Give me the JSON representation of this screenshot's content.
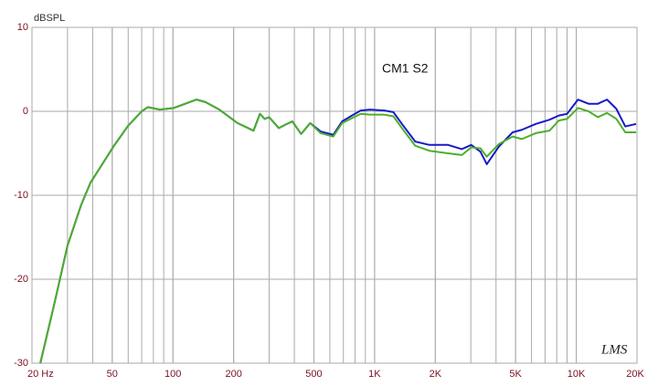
{
  "chart_data": {
    "type": "line",
    "ylabel": "dBSPL",
    "annotation": "CM1 S2",
    "watermark": "LMS",
    "x": [
      22,
      26,
      30,
      35,
      39,
      46,
      51,
      60,
      70,
      75,
      86,
      101,
      131,
      145,
      170,
      209,
      251,
      270,
      285,
      300,
      335,
      360,
      391,
      432,
      479,
      540,
      624,
      690,
      760,
      853,
      950,
      1118,
      1240,
      1366,
      1590,
      1869,
      2313,
      2709,
      3013,
      3347,
      3600,
      4130,
      4835,
      5370,
      6300,
      7370,
      8190,
      9000,
      10200,
      11500,
      12800,
      14200,
      15800,
      17500,
      19800
    ],
    "series": [
      {
        "color": "#1a1ac8",
        "values": [
          -30,
          -22.6,
          -16,
          -11.2,
          -8.5,
          -5.8,
          -4.1,
          -1.7,
          0,
          0.5,
          0.2,
          0.4,
          1.4,
          1.1,
          0.2,
          -1.4,
          -2.3,
          -0.3,
          -0.9,
          -0.7,
          -2,
          -1.6,
          -1.2,
          -2.7,
          -1.4,
          -2.4,
          -2.8,
          -1.2,
          -0.6,
          0.1,
          0.2,
          0.1,
          -0.1,
          -1.5,
          -3.6,
          -4.0,
          -4.0,
          -4.5,
          -4.0,
          -4.8,
          -6.3,
          -4.2,
          -2.5,
          -2.2,
          -1.5,
          -1.0,
          -0.5,
          -0.3,
          1.4,
          0.9,
          0.9,
          1.4,
          0.3,
          -1.8,
          -1.5
        ]
      },
      {
        "color": "#4caf2a",
        "values": [
          -30,
          -22.6,
          -16,
          -11.2,
          -8.5,
          -5.8,
          -4.1,
          -1.7,
          0,
          0.5,
          0.2,
          0.4,
          1.4,
          1.1,
          0.2,
          -1.4,
          -2.3,
          -0.3,
          -0.9,
          -0.7,
          -2,
          -1.6,
          -1.2,
          -2.7,
          -1.4,
          -2.6,
          -3,
          -1.4,
          -0.9,
          -0.3,
          -0.4,
          -0.4,
          -0.6,
          -2,
          -4.1,
          -4.7,
          -5,
          -5.2,
          -4.3,
          -4.4,
          -5.4,
          -3.9,
          -3,
          -3.3,
          -2.6,
          -2.3,
          -1.1,
          -0.9,
          0.4,
          0,
          -0.7,
          -0.2,
          -0.9,
          -2.5,
          -2.5
        ]
      }
    ],
    "xscale": "log",
    "xlim": [
      20,
      20000
    ],
    "xticks": [
      {
        "value": 20,
        "label": "20 Hz"
      },
      50,
      100,
      200,
      500,
      {
        "value": 1000,
        "label": "1K"
      },
      {
        "value": 2000,
        "label": "2K"
      },
      {
        "value": 5000,
        "label": "5K"
      },
      {
        "value": 10000,
        "label": "10K"
      },
      {
        "value": 20000,
        "label": "20K"
      }
    ],
    "ylim": [
      -30,
      10
    ],
    "yticks": [
      10,
      0,
      -10,
      -20,
      -30
    ],
    "grid": true
  }
}
